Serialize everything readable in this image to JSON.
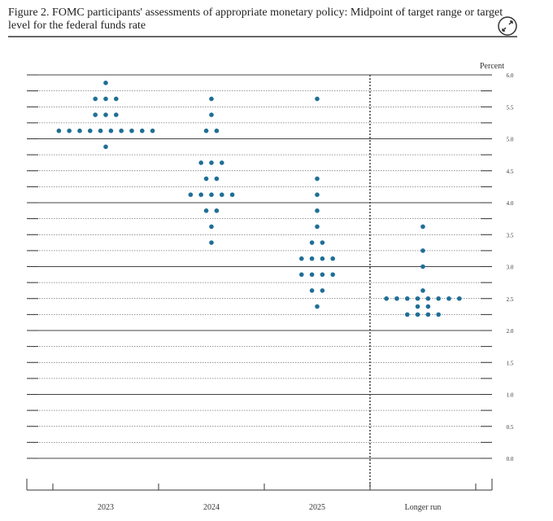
{
  "chart_data": {
    "type": "dotplot",
    "title": "Figure 2. FOMC participants' assessments of appropriate monetary policy: Midpoint of target range or target level for the federal funds rate",
    "y_label": "Percent",
    "categories": [
      "2023",
      "2024",
      "2025",
      "Longer run"
    ],
    "color": "#1f6f96",
    "ylim": [
      0,
      6
    ],
    "yticks": [
      {
        "value": 0,
        "label": "0.0"
      },
      {
        "value": 0.5,
        "label": "0.5"
      },
      {
        "value": 1,
        "label": "1.0"
      },
      {
        "value": 1.5,
        "label": "1.5"
      },
      {
        "value": 2,
        "label": "2.0"
      },
      {
        "value": 2.5,
        "label": "2.5"
      },
      {
        "value": 3,
        "label": "3.0"
      },
      {
        "value": 3.5,
        "label": "3.5"
      },
      {
        "value": 4,
        "label": "4.0"
      },
      {
        "value": 4.5,
        "label": "4.5"
      },
      {
        "value": 5,
        "label": "5.0"
      },
      {
        "value": 5.5,
        "label": "5.5"
      },
      {
        "value": 6,
        "label": "6.0"
      }
    ],
    "dots": [
      [
        {
          "value": 5.875,
          "count": 1
        },
        {
          "value": 5.625,
          "count": 3
        },
        {
          "value": 5.375,
          "count": 3
        },
        {
          "value": 5.125,
          "count": 10
        },
        {
          "value": 4.875,
          "count": 1
        }
      ],
      [
        {
          "value": 5.625,
          "count": 1
        },
        {
          "value": 5.375,
          "count": 1
        },
        {
          "value": 5.125,
          "count": 2
        },
        {
          "value": 4.625,
          "count": 3
        },
        {
          "value": 4.375,
          "count": 2
        },
        {
          "value": 4.125,
          "count": 5
        },
        {
          "value": 3.875,
          "count": 2
        },
        {
          "value": 3.625,
          "count": 1
        },
        {
          "value": 3.375,
          "count": 1
        }
      ],
      [
        {
          "value": 5.625,
          "count": 1
        },
        {
          "value": 4.375,
          "count": 1
        },
        {
          "value": 4.125,
          "count": 1
        },
        {
          "value": 3.875,
          "count": 1
        },
        {
          "value": 3.625,
          "count": 1
        },
        {
          "value": 3.375,
          "count": 2
        },
        {
          "value": 3.125,
          "count": 4
        },
        {
          "value": 2.875,
          "count": 4
        },
        {
          "value": 2.625,
          "count": 2
        },
        {
          "value": 2.375,
          "count": 1
        }
      ],
      [
        {
          "value": 3.625,
          "count": 1
        },
        {
          "value": 3.25,
          "count": 1
        },
        {
          "value": 3,
          "count": 1
        },
        {
          "value": 2.625,
          "count": 1
        },
        {
          "value": 2.5,
          "count": 8
        },
        {
          "value": 2.375,
          "count": 2
        },
        {
          "value": 2.25,
          "count": 4
        }
      ]
    ]
  }
}
